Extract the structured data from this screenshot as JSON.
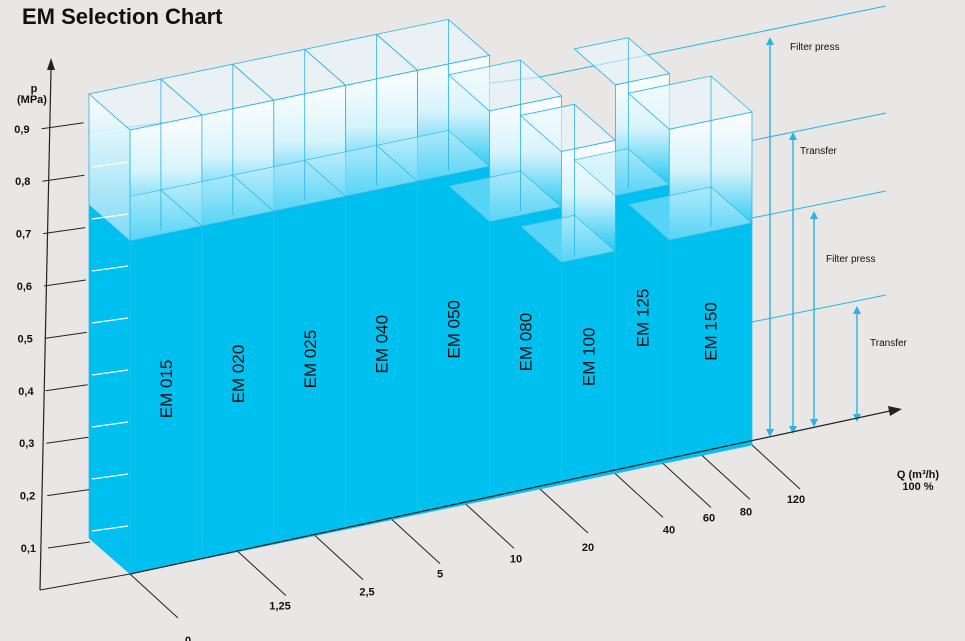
{
  "chart_data": {
    "type": "bar",
    "title": "EM Selection Chart",
    "ylabel": "p",
    "yunit": "(MPa)",
    "xlabel": "Q (m³/h)",
    "xlabel_sub": "100 %",
    "y_ticks": [
      "0,1",
      "0,2",
      "0,3",
      "0,4",
      "0,5",
      "0,6",
      "0,7",
      "0,8",
      "0,9"
    ],
    "x_ticks": [
      "0",
      "1,25",
      "2,5",
      "5",
      "10",
      "20",
      "40",
      "60",
      "80",
      "120"
    ],
    "series": [
      {
        "model": "EM 015",
        "low": 0.7,
        "high": 0.9
      },
      {
        "model": "EM 020",
        "low": 0.7,
        "high": 0.9
      },
      {
        "model": "EM 025",
        "low": 0.7,
        "high": 0.9
      },
      {
        "model": "EM 040",
        "low": 0.7,
        "high": 0.9
      },
      {
        "model": "EM 050",
        "low": 0.7,
        "high": 0.9
      },
      {
        "model": "EM 080",
        "low": 0.6,
        "high": 0.8
      },
      {
        "model": "EM 100",
        "low": 0.5,
        "high": 0.7
      },
      {
        "model": "EM 125",
        "low": 0.6,
        "high": 0.8
      },
      {
        "model": "EM 150",
        "low": 0.5,
        "high": 0.7
      }
    ],
    "ranges": [
      "Filter press",
      "Transfer",
      "Filter press",
      "Transfer"
    ],
    "colors": {
      "fill": "#00c0ef",
      "edge": "#29b3e6",
      "light": "#ffffff"
    }
  }
}
